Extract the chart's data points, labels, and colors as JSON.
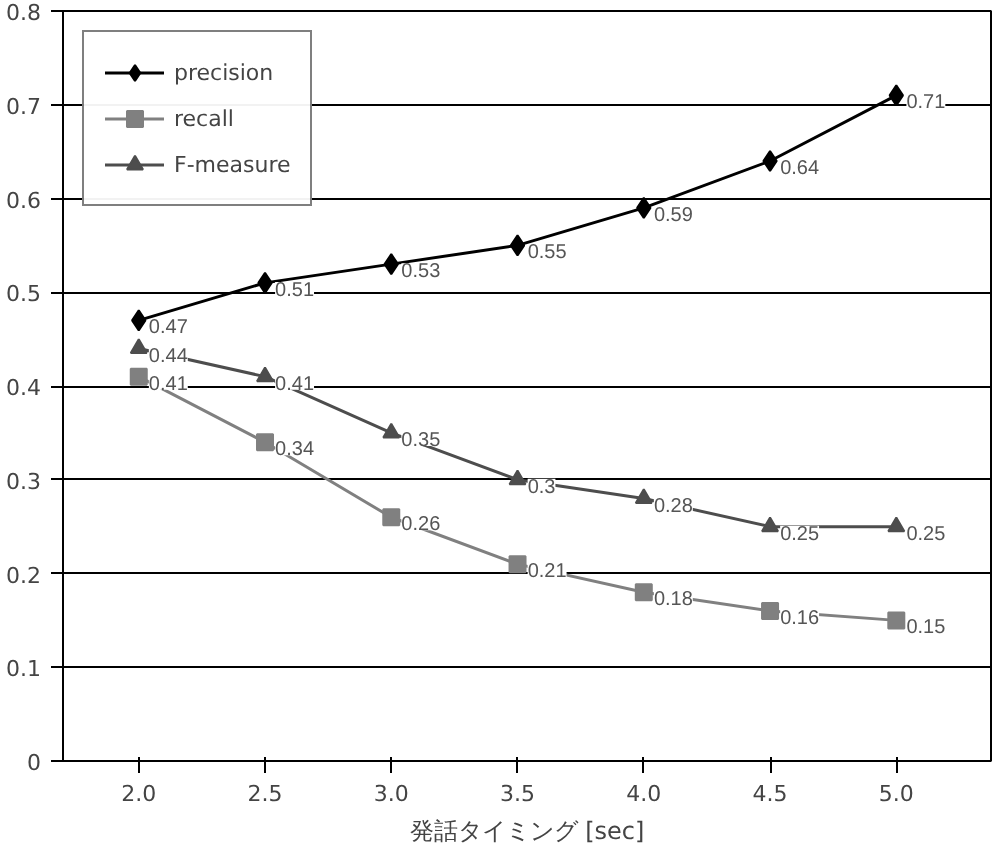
{
  "chart_data": {
    "type": "line",
    "xlabel": "発話タイミング [sec]",
    "categories": [
      "2.0",
      "2.5",
      "3.0",
      "3.5",
      "4.0",
      "4.5",
      "5.0"
    ],
    "series": [
      {
        "name": "precision",
        "color": "#000000",
        "marker": "diamond",
        "values": [
          0.47,
          0.51,
          0.53,
          0.55,
          0.59,
          0.64,
          0.71
        ]
      },
      {
        "name": "recall",
        "color": "#808080",
        "marker": "square",
        "values": [
          0.41,
          0.34,
          0.26,
          0.21,
          0.18,
          0.16,
          0.15
        ]
      },
      {
        "name": "F-measure",
        "color": "#4d4d4d",
        "marker": "triangle",
        "values": [
          0.44,
          0.41,
          0.35,
          0.3,
          0.28,
          0.25,
          0.25
        ]
      }
    ],
    "ylim": [
      0,
      0.8
    ],
    "yticks": [
      0,
      0.1,
      0.2,
      0.3,
      0.4,
      0.5,
      0.6,
      0.7,
      0.8
    ],
    "grid": "y",
    "legend": "top left",
    "data_labels": true,
    "line_style": "solid"
  }
}
